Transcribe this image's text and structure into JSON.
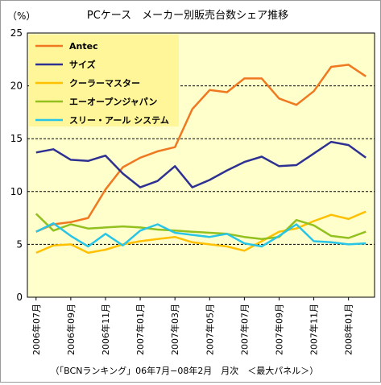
{
  "chart_data": {
    "type": "line",
    "title": "PCケース　メーカー別販売台数シェア推移",
    "ylabel": "（%）",
    "xlabel": "",
    "ylim": [
      0,
      25
    ],
    "yticks": [
      0,
      5,
      10,
      15,
      20,
      25
    ],
    "grid": "horizontal-dashed",
    "legend_position": "top-left",
    "x": [
      "2006年07月",
      "2006年08月",
      "2006年09月",
      "2006年10月",
      "2006年11月",
      "2006年12月",
      "2007年01月",
      "2007年02月",
      "2007年03月",
      "2007年04月",
      "2007年05月",
      "2007年06月",
      "2007年07月",
      "2007年08月",
      "2007年09月",
      "2007年10月",
      "2007年11月",
      "2007年12月",
      "2008年01月",
      "2008年02月"
    ],
    "x_tick_labels": [
      "2006年07月",
      "2006年09月",
      "2006年11月",
      "2007年01月",
      "2007年03月",
      "2007年05月",
      "2007年07月",
      "2007年09月",
      "2007年11月",
      "2008年01月"
    ],
    "series": [
      {
        "name": "Antec",
        "color": "#f07820",
        "values": [
          6.2,
          6.9,
          7.1,
          7.5,
          10.2,
          12.3,
          13.2,
          13.8,
          14.2,
          17.8,
          19.6,
          19.4,
          20.7,
          20.7,
          18.8,
          18.2,
          19.5,
          21.8,
          22.0,
          20.9
        ]
      },
      {
        "name": "サイズ",
        "color": "#2e3192",
        "values": [
          13.7,
          14.0,
          13.0,
          12.9,
          13.4,
          11.7,
          10.4,
          11.0,
          12.4,
          10.4,
          11.1,
          12.0,
          12.8,
          13.3,
          12.4,
          12.5,
          13.6,
          14.7,
          14.4,
          13.2
        ]
      },
      {
        "name": "クーラーマスター",
        "color": "#ffc000",
        "values": [
          4.2,
          4.9,
          5.0,
          4.2,
          4.5,
          5.0,
          5.3,
          5.5,
          5.7,
          5.2,
          5.0,
          4.8,
          4.4,
          5.3,
          6.2,
          6.5,
          7.2,
          7.8,
          7.4,
          8.1
        ]
      },
      {
        "name": "エーオープンジャパン",
        "color": "#92c01e",
        "values": [
          7.9,
          6.3,
          6.9,
          6.5,
          6.6,
          6.7,
          6.6,
          6.4,
          6.3,
          6.2,
          6.1,
          6.0,
          5.7,
          5.5,
          5.7,
          7.3,
          6.8,
          5.8,
          5.6,
          6.2
        ]
      },
      {
        "name": "スリー・アール システム",
        "color": "#29c5e6",
        "values": [
          6.2,
          7.0,
          5.8,
          4.8,
          6.0,
          4.9,
          6.3,
          6.9,
          6.1,
          5.9,
          5.7,
          6.0,
          5.1,
          4.8,
          5.8,
          6.9,
          5.3,
          5.2,
          5.0,
          5.1
        ]
      }
    ],
    "plot_bg": "#ffffcc",
    "legend_bg": "#fff699"
  },
  "source_note": "（「BCNランキング」06年7月−08年2月　月次　＜最大パネル＞）"
}
